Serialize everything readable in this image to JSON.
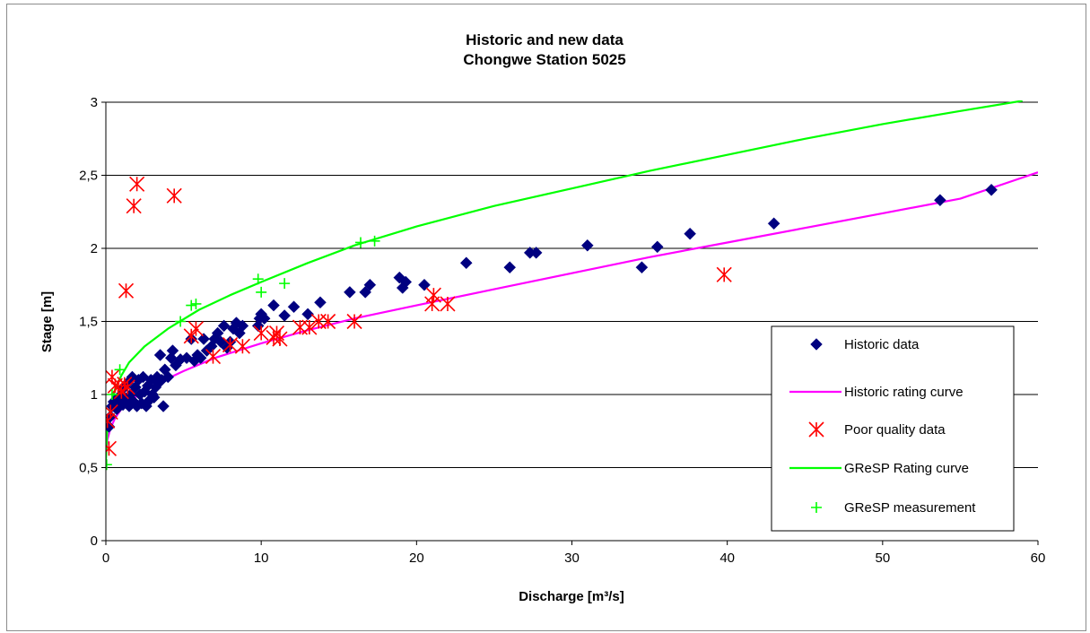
{
  "chart_data": {
    "type": "scatter",
    "title": "Historic and new data",
    "subtitle": "Chongwe Station 5025",
    "xlabel": "Discharge [m³/s]",
    "ylabel": "Stage [m]",
    "xlim": [
      0,
      60
    ],
    "ylim": [
      0,
      3
    ],
    "x_ticks": [
      "0",
      "10",
      "20",
      "30",
      "40",
      "50",
      "60"
    ],
    "y_ticks": [
      "0",
      "0,5",
      "1",
      "1,5",
      "2",
      "2,5",
      "3"
    ],
    "grid": "horizontal",
    "legend_position": "bottom-right",
    "series": [
      {
        "name": "Historic data",
        "kind": "scatter",
        "marker": "diamond",
        "color": "#000080",
        "points": [
          [
            0.2,
            0.78
          ],
          [
            0.3,
            0.85
          ],
          [
            0.4,
            0.92
          ],
          [
            0.5,
            0.95
          ],
          [
            0.7,
            0.9
          ],
          [
            0.8,
            0.98
          ],
          [
            0.9,
            0.93
          ],
          [
            1.0,
            1.0
          ],
          [
            1.1,
            0.93
          ],
          [
            1.2,
            1.05
          ],
          [
            1.3,
            0.96
          ],
          [
            1.4,
            1.08
          ],
          [
            1.5,
            0.92
          ],
          [
            1.6,
            1.0
          ],
          [
            1.7,
            1.12
          ],
          [
            1.8,
            0.95
          ],
          [
            1.9,
            1.05
          ],
          [
            2.0,
            0.92
          ],
          [
            2.1,
            1.1
          ],
          [
            2.2,
            1.0
          ],
          [
            2.3,
            0.94
          ],
          [
            2.4,
            1.12
          ],
          [
            2.5,
            1.02
          ],
          [
            2.6,
            0.92
          ],
          [
            2.7,
            1.06
          ],
          [
            2.8,
            0.96
          ],
          [
            2.9,
            1.1
          ],
          [
            3.0,
            1.0
          ],
          [
            3.1,
            0.98
          ],
          [
            3.2,
            1.05
          ],
          [
            3.3,
            1.12
          ],
          [
            3.4,
            1.08
          ],
          [
            3.5,
            1.27
          ],
          [
            3.6,
            1.1
          ],
          [
            3.7,
            0.92
          ],
          [
            3.8,
            1.17
          ],
          [
            4.0,
            1.12
          ],
          [
            4.2,
            1.25
          ],
          [
            4.3,
            1.3
          ],
          [
            4.5,
            1.2
          ],
          [
            4.8,
            1.24
          ],
          [
            5.2,
            1.25
          ],
          [
            5.5,
            1.38
          ],
          [
            5.7,
            1.23
          ],
          [
            5.9,
            1.27
          ],
          [
            6.1,
            1.25
          ],
          [
            6.3,
            1.38
          ],
          [
            6.5,
            1.3
          ],
          [
            6.8,
            1.33
          ],
          [
            7.0,
            1.38
          ],
          [
            7.2,
            1.42
          ],
          [
            7.4,
            1.36
          ],
          [
            7.6,
            1.47
          ],
          [
            7.8,
            1.32
          ],
          [
            8.0,
            1.36
          ],
          [
            8.2,
            1.45
          ],
          [
            8.4,
            1.49
          ],
          [
            8.6,
            1.42
          ],
          [
            8.8,
            1.47
          ],
          [
            9.8,
            1.47
          ],
          [
            9.9,
            1.52
          ],
          [
            10.0,
            1.55
          ],
          [
            10.2,
            1.52
          ],
          [
            10.8,
            1.61
          ],
          [
            11.5,
            1.54
          ],
          [
            12.1,
            1.6
          ],
          [
            13.0,
            1.55
          ],
          [
            13.8,
            1.63
          ],
          [
            15.7,
            1.7
          ],
          [
            16.7,
            1.7
          ],
          [
            17.0,
            1.75
          ],
          [
            18.9,
            1.8
          ],
          [
            19.1,
            1.73
          ],
          [
            19.3,
            1.77
          ],
          [
            20.5,
            1.75
          ],
          [
            23.2,
            1.9
          ],
          [
            26.0,
            1.87
          ],
          [
            27.3,
            1.97
          ],
          [
            27.7,
            1.97
          ],
          [
            31.0,
            2.02
          ],
          [
            34.5,
            1.87
          ],
          [
            35.5,
            2.01
          ],
          [
            37.6,
            2.1
          ],
          [
            43.0,
            2.17
          ],
          [
            53.7,
            2.33
          ],
          [
            57.0,
            2.4
          ]
        ]
      },
      {
        "name": "Historic rating curve",
        "kind": "line",
        "color": "#ff00ff",
        "points": [
          [
            0.02,
            0.6
          ],
          [
            0.1,
            0.69
          ],
          [
            0.3,
            0.77
          ],
          [
            0.6,
            0.84
          ],
          [
            1,
            0.9
          ],
          [
            2,
            0.99
          ],
          [
            3,
            1.06
          ],
          [
            5,
            1.16
          ],
          [
            7,
            1.25
          ],
          [
            10,
            1.35
          ],
          [
            13,
            1.44
          ],
          [
            16,
            1.52
          ],
          [
            20,
            1.61
          ],
          [
            25,
            1.72
          ],
          [
            30,
            1.83
          ],
          [
            35,
            1.94
          ],
          [
            40,
            2.04
          ],
          [
            45,
            2.14
          ],
          [
            50,
            2.24
          ],
          [
            55,
            2.34
          ],
          [
            60,
            2.52
          ]
        ]
      },
      {
        "name": "Poor quality data",
        "kind": "scatter",
        "marker": "asterisk",
        "color": "#ff0000",
        "points": [
          [
            0.2,
            0.63
          ],
          [
            0.1,
            0.82
          ],
          [
            0.3,
            0.88
          ],
          [
            0.4,
            1.12
          ],
          [
            0.6,
            1.06
          ],
          [
            0.8,
            1.05
          ],
          [
            1.0,
            1.02
          ],
          [
            1.2,
            1.07
          ],
          [
            1.4,
            1.05
          ],
          [
            1.3,
            1.71
          ],
          [
            1.8,
            2.29
          ],
          [
            2.0,
            2.44
          ],
          [
            4.4,
            2.36
          ],
          [
            5.5,
            1.4
          ],
          [
            5.8,
            1.45
          ],
          [
            6.9,
            1.26
          ],
          [
            8.0,
            1.34
          ],
          [
            8.8,
            1.33
          ],
          [
            10.0,
            1.42
          ],
          [
            10.8,
            1.39
          ],
          [
            11.0,
            1.42
          ],
          [
            11.2,
            1.38
          ],
          [
            12.5,
            1.46
          ],
          [
            13.1,
            1.46
          ],
          [
            13.7,
            1.5
          ],
          [
            14.3,
            1.5
          ],
          [
            16.0,
            1.5
          ],
          [
            21.0,
            1.62
          ],
          [
            21.1,
            1.68
          ],
          [
            22.0,
            1.62
          ],
          [
            39.8,
            1.82
          ]
        ]
      },
      {
        "name": "GReSP Rating curve",
        "kind": "line",
        "color": "#00ff00",
        "points": [
          [
            0.0,
            0.55
          ],
          [
            0.1,
            0.78
          ],
          [
            0.3,
            0.92
          ],
          [
            0.6,
            1.04
          ],
          [
            1.0,
            1.13
          ],
          [
            1.5,
            1.22
          ],
          [
            2.5,
            1.33
          ],
          [
            4,
            1.45
          ],
          [
            6,
            1.58
          ],
          [
            8,
            1.68
          ],
          [
            10,
            1.77
          ],
          [
            13,
            1.9
          ],
          [
            16,
            2.02
          ],
          [
            20,
            2.15
          ],
          [
            25,
            2.29
          ],
          [
            30,
            2.41
          ],
          [
            35,
            2.53
          ],
          [
            40,
            2.64
          ],
          [
            45,
            2.75
          ],
          [
            50,
            2.85
          ],
          [
            55,
            2.94
          ],
          [
            59,
            3.01
          ]
        ]
      },
      {
        "name": "GReSP measurement",
        "kind": "scatter",
        "marker": "plus",
        "color": "#00ff00",
        "points": [
          [
            0.05,
            0.52
          ],
          [
            0.4,
            1.0
          ],
          [
            0.9,
            1.17
          ],
          [
            4.8,
            1.5
          ],
          [
            5.5,
            1.61
          ],
          [
            5.8,
            1.62
          ],
          [
            9.8,
            1.79
          ],
          [
            10.0,
            1.7
          ],
          [
            11.5,
            1.76
          ],
          [
            16.4,
            2.04
          ],
          [
            17.3,
            2.05
          ]
        ]
      }
    ]
  }
}
